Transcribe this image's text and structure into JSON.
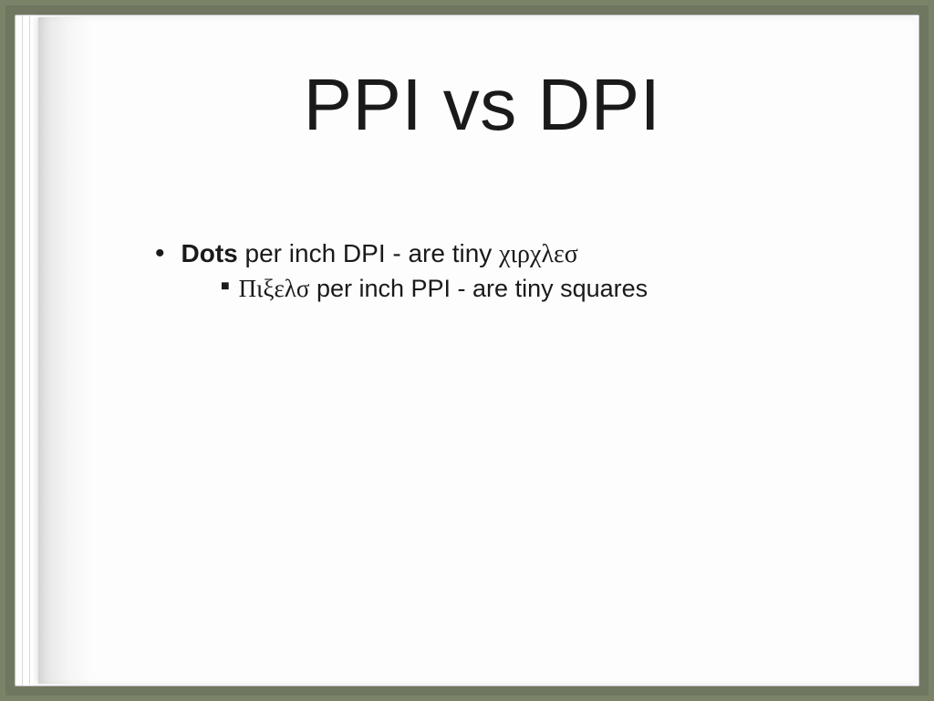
{
  "slide": {
    "title": "PPI vs DPI",
    "bullet1": {
      "bold_word": "Dots",
      "rest_before_symbol": " per inch DPI - are tiny ",
      "symbol_text": "χιρχλεσ"
    },
    "bullet2": {
      "symbol_text": "Πιξελσ",
      "rest": " per inch PPI - are tiny squares"
    }
  },
  "styling": {
    "background_color": "#7a8268",
    "page_color": "#fdfdfd",
    "text_color": "#1a1a1a",
    "title_fontsize": 80,
    "body_fontsize": 28,
    "bullet_marker_l1": "•",
    "bullet_marker_l2": "■"
  }
}
